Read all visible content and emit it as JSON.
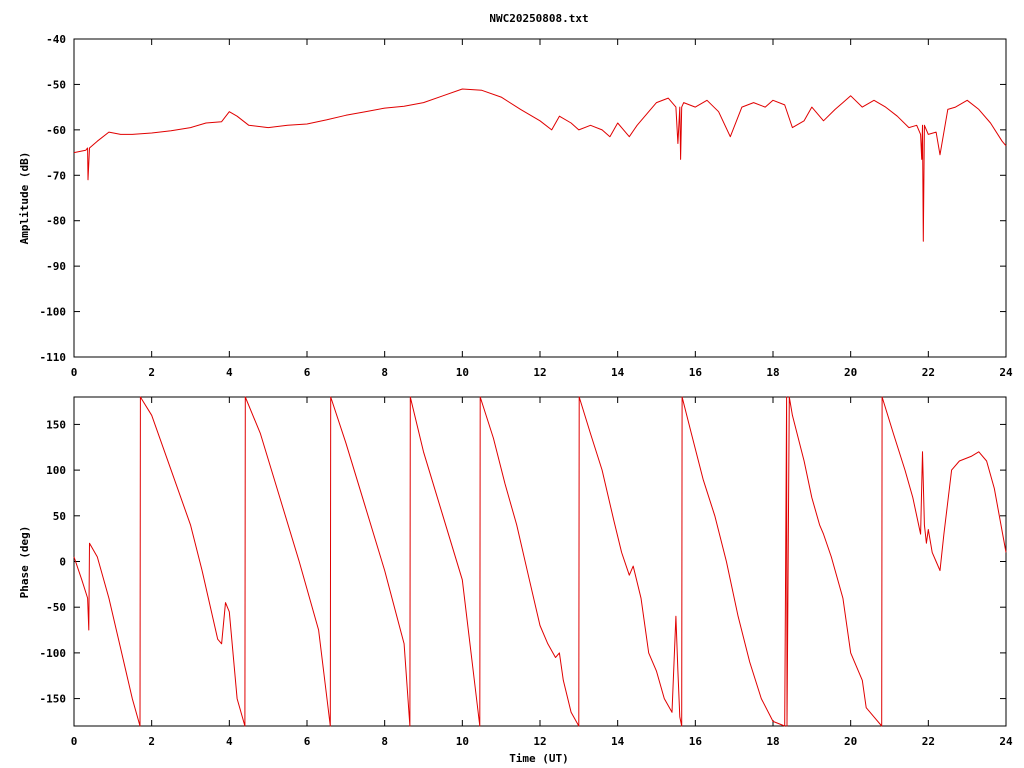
{
  "chart_data": [
    {
      "type": "line",
      "title": "NWC20250808.txt",
      "xlabel": "",
      "ylabel": "Amplitude (dB)",
      "xlim": [
        0,
        24
      ],
      "ylim": [
        -110,
        -40
      ],
      "x_ticks": [
        0,
        2,
        4,
        6,
        8,
        10,
        12,
        14,
        16,
        18,
        20,
        22,
        24
      ],
      "y_ticks": [
        -40,
        -50,
        -60,
        -70,
        -80,
        -90,
        -100,
        -110
      ],
      "x_tick_labels": [
        "0",
        "2",
        "4",
        "6",
        "8",
        "10",
        "12",
        "14",
        "16",
        "18",
        "20",
        "22",
        "24"
      ],
      "y_tick_labels": [
        "-40",
        "-50",
        "-60",
        "-70",
        "-80",
        "-90",
        "-100",
        "-110"
      ],
      "grid": false,
      "color": "#e00000",
      "series": [
        {
          "x": [
            0,
            0.3,
            0.35,
            0.36,
            0.4,
            0.6,
            0.9,
            1.2,
            1.5,
            2.0,
            2.5,
            3.0,
            3.4,
            3.8,
            4.0,
            4.2,
            4.5,
            5.0,
            5.5,
            6.0,
            6.5,
            7.0,
            7.5,
            8.0,
            8.5,
            9.0,
            9.5,
            10.0,
            10.5,
            11.0,
            11.5,
            12.0,
            12.3,
            12.5,
            12.8,
            13.0,
            13.3,
            13.6,
            13.8,
            14.0,
            14.3,
            14.5,
            14.8,
            15.0,
            15.3,
            15.5,
            15.55,
            15.6,
            15.62,
            15.65,
            15.7,
            16.0,
            16.3,
            16.6,
            16.9,
            17.2,
            17.5,
            17.8,
            18.0,
            18.3,
            18.5,
            18.8,
            19.0,
            19.3,
            19.6,
            19.8,
            20.0,
            20.3,
            20.6,
            20.9,
            21.2,
            21.5,
            21.7,
            21.8,
            21.83,
            21.85,
            21.87,
            21.9,
            22.0,
            22.2,
            22.3,
            22.5,
            22.7,
            23.0,
            23.3,
            23.6,
            23.9,
            24.0
          ],
          "values": [
            -65,
            -64.5,
            -64,
            -71,
            -64,
            -62.5,
            -60.5,
            -61,
            -61,
            -60.7,
            -60.2,
            -59.5,
            -58.5,
            -58.2,
            -56,
            -57,
            -59,
            -59.5,
            -59,
            -58.7,
            -57.8,
            -56.8,
            -56,
            -55.2,
            -54.8,
            -54,
            -52.5,
            -51,
            -51.3,
            -52.8,
            -55.5,
            -58,
            -60,
            -57,
            -58.5,
            -60,
            -59,
            -60,
            -61.5,
            -58.5,
            -61.5,
            -59,
            -56,
            -54,
            -53,
            -55,
            -63,
            -55,
            -66.5,
            -55,
            -54,
            -55,
            -53.5,
            -56,
            -61.5,
            -55,
            -54,
            -55,
            -53.5,
            -54.5,
            -59.5,
            -58,
            -55,
            -58,
            -55.5,
            -54,
            -52.5,
            -55,
            -53.5,
            -55,
            -57,
            -59.5,
            -59,
            -61,
            -66.5,
            -59,
            -84.5,
            -59,
            -61,
            -60.5,
            -65.5,
            -55.5,
            -55,
            -53.5,
            -55.5,
            -58.5,
            -62.5,
            -63.5
          ]
        }
      ]
    },
    {
      "type": "line",
      "title": "",
      "xlabel": "Time (UT)",
      "ylabel": "Phase (deg)",
      "xlim": [
        0,
        24
      ],
      "ylim": [
        -180,
        180
      ],
      "x_ticks": [
        0,
        2,
        4,
        6,
        8,
        10,
        12,
        14,
        16,
        18,
        20,
        22,
        24
      ],
      "y_ticks": [
        150,
        100,
        50,
        0,
        -50,
        -100,
        -150
      ],
      "x_tick_labels": [
        "0",
        "2",
        "4",
        "6",
        "8",
        "10",
        "12",
        "14",
        "16",
        "18",
        "20",
        "22",
        "24"
      ],
      "y_tick_labels": [
        "150",
        "100",
        "50",
        "0",
        "-50",
        "-100",
        "-150"
      ],
      "grid": false,
      "color": "#e00000",
      "series": [
        {
          "x": [
            0,
            0.2,
            0.35,
            0.38,
            0.4,
            0.6,
            0.9,
            1.2,
            1.5,
            1.7,
            1.71,
            2.0,
            2.5,
            3.0,
            3.3,
            3.7,
            3.8,
            3.9,
            4.0,
            4.2,
            4.4,
            4.41,
            4.8,
            5.3,
            5.8,
            6.3,
            6.6,
            6.61,
            7.0,
            7.5,
            8.0,
            8.5,
            8.65,
            8.66,
            9.0,
            9.5,
            10.0,
            10.45,
            10.46,
            10.8,
            11.1,
            11.4,
            11.7,
            12.0,
            12.2,
            12.4,
            12.5,
            12.6,
            12.8,
            13.0,
            13.01,
            13.3,
            13.6,
            13.9,
            14.1,
            14.3,
            14.4,
            14.6,
            14.8,
            15.0,
            15.2,
            15.4,
            15.5,
            15.55,
            15.6,
            15.65,
            15.66,
            15.9,
            16.2,
            16.5,
            16.8,
            17.1,
            17.4,
            17.7,
            18.0,
            18.3,
            18.35,
            18.36,
            18.42,
            18.5,
            18.8,
            19.0,
            19.2,
            19.3,
            19.5,
            19.8,
            20.0,
            20.3,
            20.4,
            20.6,
            20.8,
            20.81,
            21.1,
            21.4,
            21.6,
            21.8,
            21.85,
            21.9,
            21.95,
            22.0,
            22.1,
            22.2,
            22.3,
            22.4,
            22.6,
            22.8,
            23.1,
            23.3,
            23.5,
            23.7,
            24.0
          ],
          "values": [
            5,
            -20,
            -40,
            -75,
            20,
            5,
            -40,
            -95,
            -150,
            -180,
            180,
            160,
            100,
            40,
            -10,
            -85,
            -90,
            -45,
            -55,
            -150,
            -180,
            180,
            140,
            70,
            0,
            -75,
            -180,
            180,
            130,
            60,
            -10,
            -90,
            -180,
            180,
            120,
            50,
            -20,
            -180,
            180,
            135,
            85,
            40,
            -15,
            -70,
            -90,
            -105,
            -100,
            -130,
            -165,
            -180,
            180,
            140,
            100,
            45,
            10,
            -15,
            -5,
            -40,
            -100,
            -120,
            -150,
            -165,
            -60,
            -120,
            -170,
            -180,
            180,
            140,
            90,
            50,
            0,
            -60,
            -110,
            -150,
            -175,
            -180,
            180,
            -180,
            180,
            160,
            110,
            70,
            40,
            30,
            5,
            -40,
            -100,
            -130,
            -160,
            -170,
            -180,
            180,
            140,
            100,
            70,
            30,
            120,
            40,
            20,
            35,
            10,
            0,
            -10,
            30,
            100,
            110,
            115,
            120,
            110,
            80,
            10
          ]
        }
      ]
    }
  ]
}
